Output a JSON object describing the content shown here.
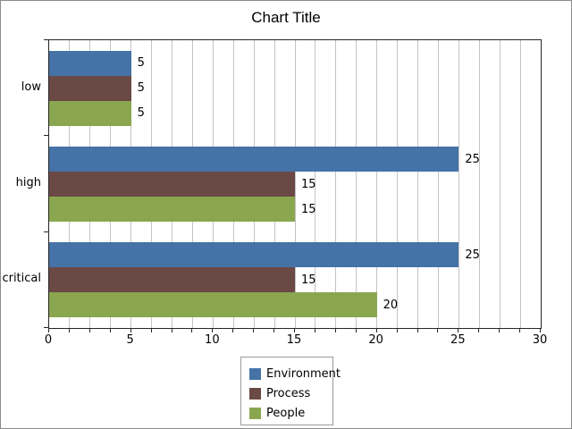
{
  "chart_data": {
    "type": "bar",
    "orientation": "horizontal",
    "title": "Chart Title",
    "categories": [
      "low",
      "high",
      "critical"
    ],
    "series": [
      {
        "name": "Environment",
        "color": "#4573A7",
        "values": [
          5,
          25,
          25
        ]
      },
      {
        "name": "Process",
        "color": "#6B4945",
        "values": [
          5,
          15,
          15
        ]
      },
      {
        "name": "People",
        "color": "#8AA64F",
        "values": [
          5,
          15,
          20
        ]
      }
    ],
    "xlim": [
      0,
      30
    ],
    "x_major_ticks": [
      0,
      5,
      10,
      15,
      20,
      25,
      30
    ],
    "minor_grid_interval": 1.25,
    "grid": true,
    "value_labels": true,
    "legend_position": "bottom",
    "xlabel": "",
    "ylabel": ""
  },
  "style_colors": {
    "plot_frame": "#262626",
    "gridline": "#c3c3c3",
    "outer_border": "#8a8a8a",
    "legend_border": "#9b9b9b",
    "text": "#000000"
  }
}
